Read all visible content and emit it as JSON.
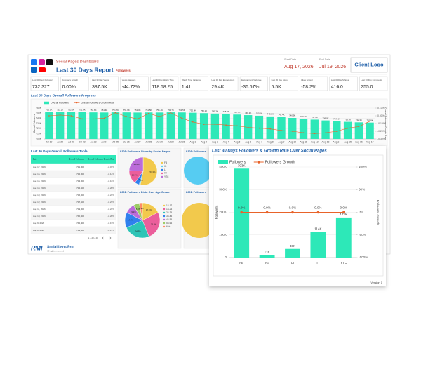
{
  "header": {
    "subtitle": "Social Pages Dashboard",
    "title": "Last 30 Days Report",
    "title_suffix": "Followers",
    "start_label": "Start Date",
    "start_date": "Aug 17, 2026",
    "end_label": "End Date",
    "end_date": "Jul 19, 2026",
    "logo": "Client Logo"
  },
  "kpis": [
    {
      "label": "Last 30 Days Followers",
      "value": "732,327"
    },
    {
      "label": "Followers Growth",
      "value": "0.00%"
    },
    {
      "label": "Last 30 Day Views",
      "value": "387.5K"
    },
    {
      "label": "Views Variance",
      "value": "-44.72%"
    },
    {
      "label": "Last 30 Day Watch Time",
      "value": "118:58:25"
    },
    {
      "label": "Watch Time Variance",
      "value": "1.41"
    },
    {
      "label": "Last 30 Day Engagement",
      "value": "29.4K"
    },
    {
      "label": "Engagement Variance",
      "value": "-35.57%"
    },
    {
      "label": "Last 30 Day Likes",
      "value": "5.5K"
    },
    {
      "label": "Likes Growth",
      "value": "-58.2%"
    },
    {
      "label": "Last 30 Day Shares",
      "value": "416.0"
    },
    {
      "label": "Last 30 Day Comments",
      "value": "255.0"
    }
  ],
  "trend_chart": {
    "type": "bar",
    "title": "Last 30 Days Overall Followers Progress",
    "ylabel": "Overall Followers",
    "y2label": "Overall Followers Growth Rate",
    "categories": [
      "Jul 19",
      "Jul 20",
      "Jul 21",
      "Jul 22",
      "Jul 23",
      "Jul 24",
      "Jul 25",
      "Jul 26",
      "Jul 27",
      "Jul 28",
      "Jul 29",
      "Jul 30",
      "Jul 31",
      "Aug 1",
      "Aug 2",
      "Aug 3",
      "Aug 4",
      "Aug 5",
      "Aug 6",
      "Aug 7",
      "Aug 8",
      "Aug 9",
      "Aug 10",
      "Aug 11",
      "Aug 12",
      "Aug 13",
      "Aug 14",
      "Aug 15",
      "Aug 16",
      "Aug 17"
    ],
    "series": [
      {
        "name": "Overall Followers",
        "color": "#2de8b8",
        "values": [
          752100,
          752200,
          752200,
          751900,
          751600,
          751400,
          751700,
          751600,
          751300,
          751500,
          751400,
          751700,
          751500,
          750900,
          750100,
          749300,
          748400,
          747400,
          746300,
          745100,
          743800,
          742400,
          740900,
          739300,
          737600,
          736000,
          734500,
          733300,
          732300,
          731800
        ],
        "value_labels": [
          "752.1K",
          "752.2K",
          "752.2K",
          "751.9K",
          "751.6K",
          "751.4K",
          "751.7K",
          "751.6K",
          "751.3K",
          "751.5K",
          "751.4K",
          "751.7K",
          "751.5K",
          "750.9K",
          "750.1K",
          "749.3K",
          "748.4K",
          "747.4K",
          "746.3K",
          "745.1K",
          "743.8K",
          "742.4K",
          "740.9K",
          "739.3K",
          "737.6K",
          "736.0K",
          "734.5K",
          "733.3K",
          "732.3K",
          "731.8K"
        ]
      },
      {
        "name": "Overall Followers Growth Rate",
        "color": "#e8632a",
        "axis": "y2",
        "values": [
          0,
          0.01,
          0,
          -0.04,
          -0.04,
          -0.03,
          0.04,
          -0.01,
          -0.04,
          0.03,
          -0.01,
          0.04,
          -0.03,
          -0.08,
          -0.11,
          -0.11,
          -0.12,
          -0.13,
          -0.15,
          -0.16,
          -0.17,
          -0.19,
          -0.2,
          -0.22,
          -0.23,
          -0.22,
          -0.2,
          -0.16,
          -0.14,
          -0.07
        ]
      }
    ],
    "ylim": [
      700000,
      760000
    ],
    "yticks": [
      {
        "value": 700000,
        "label": "700K"
      },
      {
        "value": 710000,
        "label": "710K"
      },
      {
        "value": 720000,
        "label": "720K"
      },
      {
        "value": 730000,
        "label": "730K"
      },
      {
        "value": 740000,
        "label": "740K"
      },
      {
        "value": 750000,
        "label": "750K"
      },
      {
        "value": 760000,
        "label": "760K"
      }
    ],
    "y2lim": [
      -0.3,
      0.1
    ],
    "y2ticks": [
      {
        "value": -0.3,
        "label": "-0.30%"
      },
      {
        "value": -0.2,
        "label": "-0.20%"
      },
      {
        "value": -0.1,
        "label": "-0.10%"
      },
      {
        "value": 0,
        "label": "0.00%"
      },
      {
        "value": 0.1,
        "label": "0.10%"
      }
    ]
  },
  "table": {
    "title": "Last 30 Days Overall Followers Table",
    "columns": [
      "Date",
      "Overall Followers",
      "Overall Followers Growth Rate"
    ],
    "rows": [
      [
        "Aug 17, 2026",
        "731,800",
        "-0.07%"
      ],
      [
        "Aug 16, 2026",
        "732,300",
        "-0.14%"
      ],
      [
        "Aug 15, 2026",
        "733,300",
        "-0.16%"
      ],
      [
        "Aug 14, 2026",
        "734,500",
        "-0.20%"
      ],
      [
        "Aug 13, 2026",
        "736,000",
        "-0.22%"
      ],
      [
        "Aug 12, 2026",
        "737,600",
        "-0.23%"
      ],
      [
        "Aug 11, 2026",
        "739,300",
        "-0.22%"
      ],
      [
        "Aug 10, 2026",
        "740,900",
        "-0.20%"
      ],
      [
        "Aug 9, 2026",
        "742,400",
        "-0.19%"
      ],
      [
        "Aug 8, 2026",
        "743,800",
        "-0.17%"
      ]
    ],
    "pagination": "1 - 30 / 30"
  },
  "pies": [
    {
      "type": "pie",
      "title": "L30D Followers Share by Social Pages",
      "categories": [
        "FB",
        "IG",
        "LI",
        "TT",
        "YTC"
      ],
      "colors": [
        "#f2c94c",
        "#56ccf2",
        "#2f80ed",
        "#eb5e9b",
        "#bb6bd9"
      ],
      "values": [
        53.3,
        1.4,
        5.2,
        15.9,
        24.2
      ],
      "value_labels": [
        "53.3%",
        "1.4%",
        "5.2%",
        "15.9%",
        "24.2%"
      ]
    },
    {
      "type": "pie",
      "title": "L30D Followers Distr. Over Age Group",
      "categories": [
        "13-17",
        "18-24",
        "25-34",
        "35-44",
        "45-54",
        "55-64",
        "65+"
      ],
      "colors": [
        "#f2c94c",
        "#eb5e9b",
        "#2ec4b6",
        "#2f80ed",
        "#bb6bd9",
        "#9ccc65",
        "#ff8a65"
      ],
      "values": [
        17.5,
        26.4,
        24.3,
        14.2,
        9.1,
        5.6,
        2.9
      ],
      "value_labels": [
        "17.5%",
        "26.4%",
        "24.3%",
        "14.2%",
        "9.1%",
        "5.6%",
        "2.9%"
      ]
    }
  ],
  "covered_titles": [
    "L30D Followers",
    "L30D Followers"
  ],
  "footer": {
    "brand": "RMI",
    "product": "Social Lens Pro",
    "rights": "All rights reserved"
  },
  "popup_chart": {
    "type": "bar",
    "title": "Last 30 Days Followers & Growth Rate Over Social Pages",
    "ylabel": "Followers",
    "y2label": "Followers Growth",
    "categories": [
      "FB",
      "IG",
      "LI",
      "TT",
      "YTC"
    ],
    "series": [
      {
        "name": "Followers",
        "color": "#2de8b8",
        "values": [
          393000,
          11000,
          38000,
          114000,
          177000
        ],
        "value_labels": [
          "393K",
          "11K",
          "38K",
          "114K",
          "177K"
        ]
      },
      {
        "name": "Followers Growth",
        "color": "#e8632a",
        "axis": "y2",
        "values": [
          0,
          0,
          0,
          0,
          0
        ],
        "value_labels": [
          "0.0%",
          "0.0%",
          "0.0%",
          "0.0%",
          "0.0%"
        ]
      }
    ],
    "ylim": [
      0,
      400000
    ],
    "yticks": [
      0,
      {
        "value": 100000,
        "label": "100K"
      },
      {
        "value": 200000,
        "label": "200K"
      },
      {
        "value": 300000,
        "label": "300K"
      },
      {
        "value": 400000,
        "label": "400K"
      }
    ],
    "y2lim": [
      -100,
      100
    ],
    "y2ticks": [
      {
        "value": -100,
        "label": "-100%"
      },
      {
        "value": -50,
        "label": "-50%"
      },
      {
        "value": 0,
        "label": "0%"
      },
      {
        "value": 50,
        "label": "50%"
      },
      {
        "value": 100,
        "label": "100%"
      }
    ],
    "footer": "Version 1"
  }
}
